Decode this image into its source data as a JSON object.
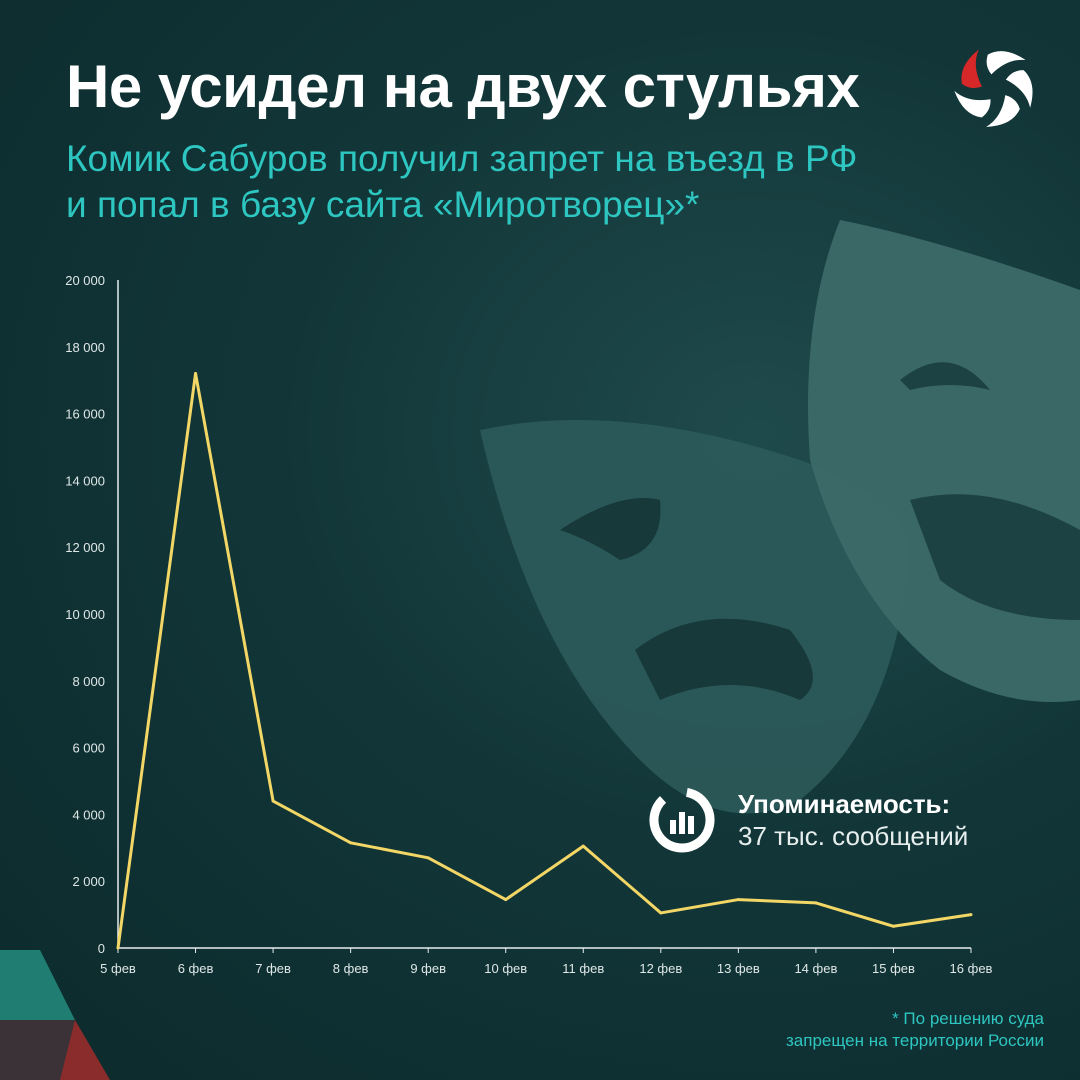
{
  "header": {
    "title": "Не усидел на двух стульях",
    "subtitle_line1": "Комик Сабуров получил запрет на въезд в РФ",
    "subtitle_line2": "и попал в базу сайта «Миротворец»*"
  },
  "logo": {
    "icon": "pinwheel-logo-icon",
    "colors": [
      "#ffffff",
      "#d62828"
    ]
  },
  "stat": {
    "icon": "analytics-chart-icon",
    "label": "Упоминаемость:",
    "value": "37 тыс. сообщений"
  },
  "footnote": {
    "line1": "* По решению суда",
    "line2": "запрещен на территории России"
  },
  "colors": {
    "background": "#123638",
    "accent": "#2ec6c0",
    "line": "#f2d766"
  },
  "chart_data": {
    "type": "line",
    "title": "",
    "xlabel": "",
    "ylabel": "",
    "categories": [
      "5 фев",
      "6 фев",
      "7 фев",
      "8 фев",
      "9 фев",
      "10 фев",
      "11 фев",
      "12 фев",
      "13 фев",
      "14 фев",
      "15 фев",
      "16 фев"
    ],
    "values": [
      0,
      17200,
      4400,
      3150,
      2700,
      1450,
      3050,
      1050,
      1450,
      1350,
      650,
      1000
    ],
    "ylim": [
      0,
      20000
    ],
    "yticks": [
      0,
      2000,
      4000,
      6000,
      8000,
      10000,
      12000,
      14000,
      16000,
      18000,
      20000
    ],
    "ytick_labels": [
      "0",
      "2 000",
      "4 000",
      "6 000",
      "8 000",
      "10 000",
      "12 000",
      "14 000",
      "16 000",
      "18 000",
      "20 000"
    ],
    "grid": false,
    "legend": "none"
  }
}
